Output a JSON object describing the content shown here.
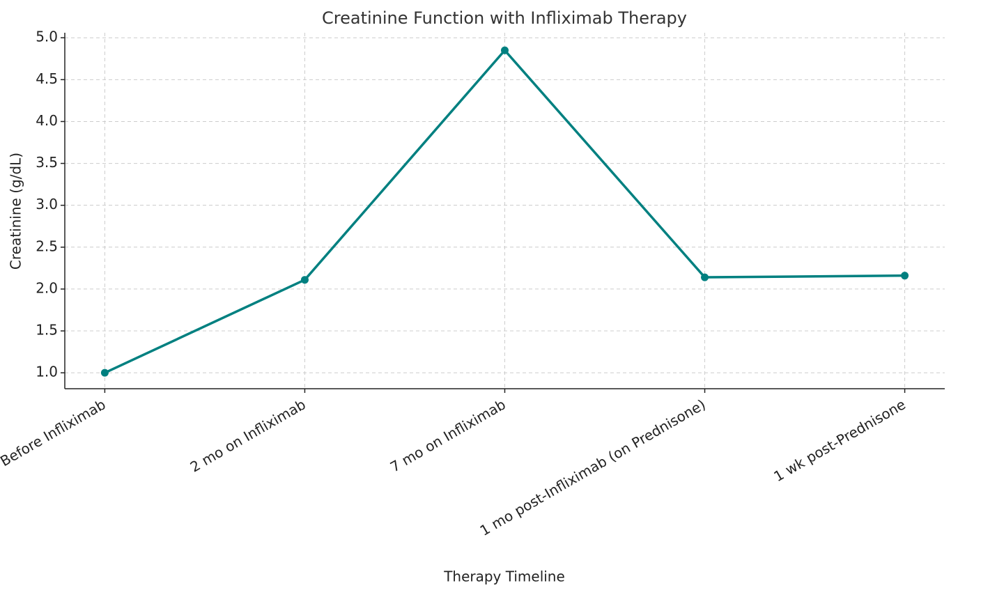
{
  "chart_data": {
    "type": "line",
    "title": "Creatinine Function with Infliximab Therapy",
    "x_label": "Therapy Timeline",
    "y_label": "Creatinine (g/dL)",
    "categories": [
      "Before Infliximab",
      "2 mo on Infliximab",
      "7 mo on Infliximab",
      "1 mo post-Infliximab (on Prednisone)",
      "1 wk post-Prednisone"
    ],
    "series": [
      {
        "name": "Creatinine",
        "color": "#008080",
        "values": [
          1.0,
          2.11,
          4.85,
          2.14,
          2.16
        ]
      }
    ],
    "ylim": [
      0.81,
      5.06
    ],
    "yticks": [
      {
        "value": 1,
        "label": "1.0"
      },
      1.5,
      {
        "value": 2,
        "label": "2.0"
      },
      2.5,
      {
        "value": 3,
        "label": "3.0"
      },
      3.5,
      {
        "value": 4,
        "label": "4.0"
      },
      4.5,
      {
        "value": 5,
        "label": "5.0"
      }
    ],
    "grid": true
  }
}
